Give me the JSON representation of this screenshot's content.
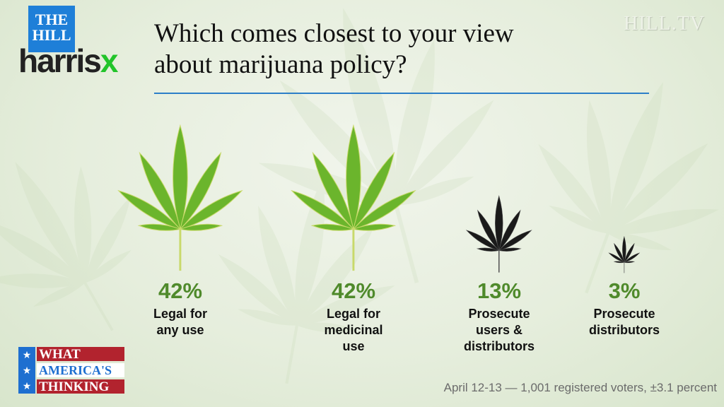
{
  "header": {
    "logo_top": "THE HILL",
    "logo_brand_a": "harris",
    "logo_brand_b": "x",
    "title_line1": "Which comes closest to your view",
    "title_line2": "about marijuana policy?",
    "watermark": "HILL.TV"
  },
  "badge": {
    "line1": "WHAT",
    "line2": "AMERICA'S",
    "line3": "THINKING",
    "stars": "★ ★ ★"
  },
  "footer": "April 12-13 — 1,001 registered voters, ±3.1 percent",
  "colors": {
    "leaf_green": "#6bb52c",
    "percent_green": "#4f8a2b",
    "accent_blue": "#2c7fc8"
  },
  "chart_data": {
    "type": "pictogram",
    "title": "Which comes closest to your view about marijuana policy?",
    "categories": [
      "Legal for any use",
      "Legal for medicinal use",
      "Prosecute users & distributors",
      "Prosecute distributors"
    ],
    "values": [
      42,
      42,
      13,
      3
    ],
    "labels": [
      "42%",
      "42%",
      "13%",
      "3%"
    ],
    "label_lines": [
      [
        "Legal for",
        "any use"
      ],
      [
        "Legal for",
        "medicinal",
        "use"
      ],
      [
        "Prosecute",
        "users &",
        "distributors"
      ],
      [
        "Prosecute",
        "distributors"
      ]
    ],
    "unit": "percent"
  }
}
